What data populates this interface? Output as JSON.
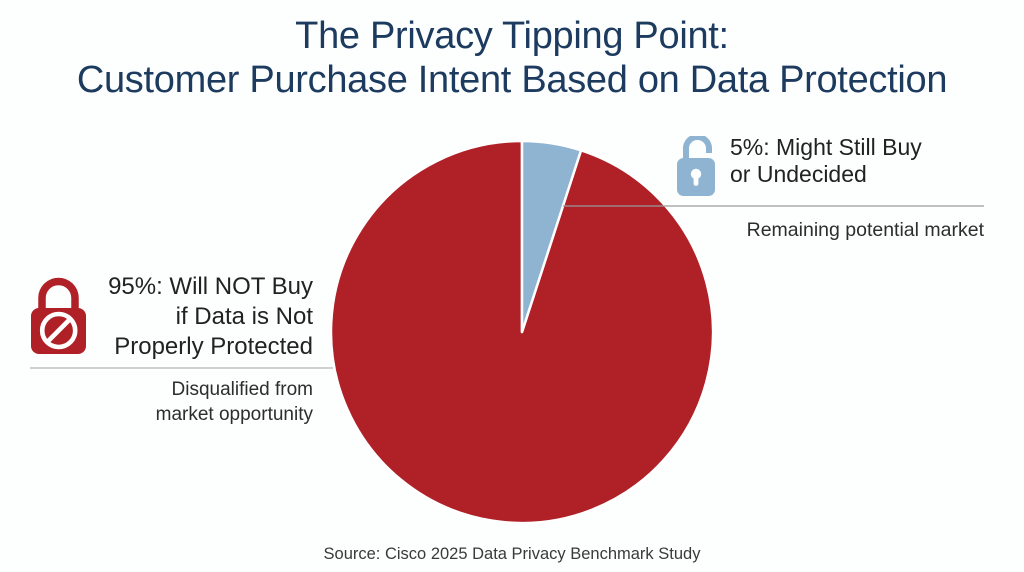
{
  "title": {
    "line1": "The Privacy Tipping Point:",
    "line2": "Customer Purchase Intent Based on Data Protection"
  },
  "chart_data": {
    "type": "pie",
    "title": "The Privacy Tipping Point: Customer Purchase Intent Based on Data Protection",
    "start_angle_deg": 18,
    "slices": [
      {
        "label": "Will NOT Buy if Data is Not Properly Protected",
        "value": 95,
        "unit": "%",
        "color": "#af2127",
        "annotation": "Disqualified from market opportunity"
      },
      {
        "label": "Might Still Buy or Undecided",
        "value": 5,
        "unit": "%",
        "color": "#8fb4d1",
        "annotation": "Remaining potential market"
      }
    ],
    "legend_position": "callouts",
    "source": "Source: Cisco 2025 Data Privacy Benchmark Study"
  },
  "left_callout": {
    "icon": "locked-padlock-prohibited-icon",
    "headline_lines": [
      "95%: Will NOT Buy",
      "if Data is Not",
      "Properly Protected"
    ],
    "subtext_lines": [
      "Disqualified from",
      "market opportunity"
    ]
  },
  "right_callout": {
    "icon": "unlocked-padlock-icon",
    "headline_lines": [
      "5%: Might Still Buy",
      "or Undecided"
    ],
    "subtext": "Remaining potential market"
  },
  "source": "Source: Cisco 2025 Data Privacy Benchmark Study",
  "colors": {
    "title_navy": "#1c3b5e",
    "slice_red": "#af2127",
    "slice_blue": "#8fb4d1",
    "leader_line": "#9b9b9b",
    "separator_line": "#b5b5b5",
    "background": "#fdfefe"
  }
}
